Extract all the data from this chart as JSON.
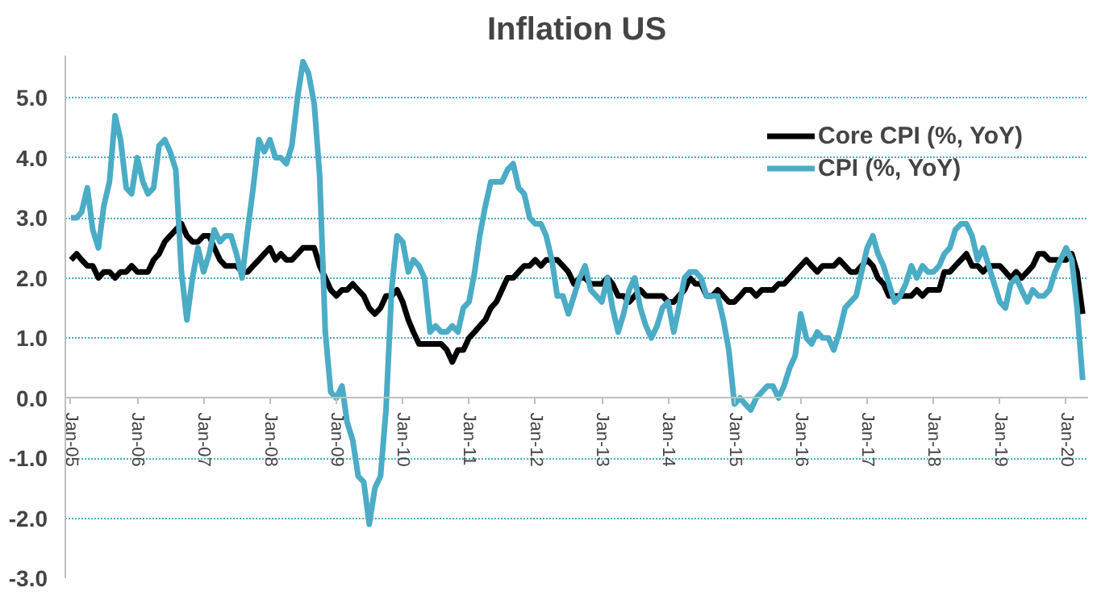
{
  "chart_data": {
    "type": "line",
    "title": "Inflation US",
    "x": [
      "2005-01",
      "2005-02",
      "2005-03",
      "2005-04",
      "2005-05",
      "2005-06",
      "2005-07",
      "2005-08",
      "2005-09",
      "2005-10",
      "2005-11",
      "2005-12",
      "2006-01",
      "2006-02",
      "2006-03",
      "2006-04",
      "2006-05",
      "2006-06",
      "2006-07",
      "2006-08",
      "2006-09",
      "2006-10",
      "2006-11",
      "2006-12",
      "2007-01",
      "2007-02",
      "2007-03",
      "2007-04",
      "2007-05",
      "2007-06",
      "2007-07",
      "2007-08",
      "2007-09",
      "2007-10",
      "2007-11",
      "2007-12",
      "2008-01",
      "2008-02",
      "2008-03",
      "2008-04",
      "2008-05",
      "2008-06",
      "2008-07",
      "2008-08",
      "2008-09",
      "2008-10",
      "2008-11",
      "2008-12",
      "2009-01",
      "2009-02",
      "2009-03",
      "2009-04",
      "2009-05",
      "2009-06",
      "2009-07",
      "2009-08",
      "2009-09",
      "2009-10",
      "2009-11",
      "2009-12",
      "2010-01",
      "2010-02",
      "2010-03",
      "2010-04",
      "2010-05",
      "2010-06",
      "2010-07",
      "2010-08",
      "2010-09",
      "2010-10",
      "2010-11",
      "2010-12",
      "2011-01",
      "2011-02",
      "2011-03",
      "2011-04",
      "2011-05",
      "2011-06",
      "2011-07",
      "2011-08",
      "2011-09",
      "2011-10",
      "2011-11",
      "2011-12",
      "2012-01",
      "2012-02",
      "2012-03",
      "2012-04",
      "2012-05",
      "2012-06",
      "2012-07",
      "2012-08",
      "2012-09",
      "2012-10",
      "2012-11",
      "2012-12",
      "2013-01",
      "2013-02",
      "2013-03",
      "2013-04",
      "2013-05",
      "2013-06",
      "2013-07",
      "2013-08",
      "2013-09",
      "2013-10",
      "2013-11",
      "2013-12",
      "2014-01",
      "2014-02",
      "2014-03",
      "2014-04",
      "2014-05",
      "2014-06",
      "2014-07",
      "2014-08",
      "2014-09",
      "2014-10",
      "2014-11",
      "2014-12",
      "2015-01",
      "2015-02",
      "2015-03",
      "2015-04",
      "2015-05",
      "2015-06",
      "2015-07",
      "2015-08",
      "2015-09",
      "2015-10",
      "2015-11",
      "2015-12",
      "2016-01",
      "2016-02",
      "2016-03",
      "2016-04",
      "2016-05",
      "2016-06",
      "2016-07",
      "2016-08",
      "2016-09",
      "2016-10",
      "2016-11",
      "2016-12",
      "2017-01",
      "2017-02",
      "2017-03",
      "2017-04",
      "2017-05",
      "2017-06",
      "2017-07",
      "2017-08",
      "2017-09",
      "2017-10",
      "2017-11",
      "2017-12",
      "2018-01",
      "2018-02",
      "2018-03",
      "2018-04",
      "2018-05",
      "2018-06",
      "2018-07",
      "2018-08",
      "2018-09",
      "2018-10",
      "2018-11",
      "2018-12",
      "2019-01",
      "2019-02",
      "2019-03",
      "2019-04",
      "2019-05",
      "2019-06",
      "2019-07",
      "2019-08",
      "2019-09",
      "2019-10",
      "2019-11",
      "2019-12",
      "2020-01",
      "2020-02",
      "2020-03",
      "2020-04"
    ],
    "series": [
      {
        "name": "Core CPI (%, YoY)",
        "color": "#000000",
        "values": [
          2.3,
          2.4,
          2.3,
          2.2,
          2.2,
          2.0,
          2.1,
          2.1,
          2.0,
          2.1,
          2.1,
          2.2,
          2.1,
          2.1,
          2.1,
          2.3,
          2.4,
          2.6,
          2.7,
          2.8,
          2.9,
          2.7,
          2.6,
          2.6,
          2.7,
          2.7,
          2.5,
          2.3,
          2.2,
          2.2,
          2.2,
          2.1,
          2.1,
          2.2,
          2.3,
          2.4,
          2.5,
          2.3,
          2.4,
          2.3,
          2.3,
          2.4,
          2.5,
          2.5,
          2.5,
          2.2,
          2.0,
          1.8,
          1.7,
          1.8,
          1.8,
          1.9,
          1.8,
          1.7,
          1.5,
          1.4,
          1.5,
          1.7,
          1.7,
          1.8,
          1.6,
          1.3,
          1.1,
          0.9,
          0.9,
          0.9,
          0.9,
          0.9,
          0.8,
          0.6,
          0.8,
          0.8,
          1.0,
          1.1,
          1.2,
          1.3,
          1.5,
          1.6,
          1.8,
          2.0,
          2.0,
          2.1,
          2.2,
          2.2,
          2.3,
          2.2,
          2.3,
          2.3,
          2.3,
          2.2,
          2.1,
          1.9,
          2.0,
          2.0,
          1.9,
          1.9,
          1.9,
          2.0,
          1.9,
          1.7,
          1.7,
          1.6,
          1.7,
          1.8,
          1.7,
          1.7,
          1.7,
          1.7,
          1.6,
          1.6,
          1.7,
          1.8,
          2.0,
          1.9,
          1.9,
          1.7,
          1.7,
          1.8,
          1.7,
          1.6,
          1.6,
          1.7,
          1.8,
          1.8,
          1.7,
          1.8,
          1.8,
          1.8,
          1.9,
          1.9,
          2.0,
          2.1,
          2.2,
          2.3,
          2.2,
          2.1,
          2.2,
          2.2,
          2.2,
          2.3,
          2.2,
          2.1,
          2.1,
          2.2,
          2.3,
          2.2,
          2.0,
          1.9,
          1.7,
          1.7,
          1.7,
          1.7,
          1.7,
          1.8,
          1.7,
          1.8,
          1.8,
          1.8,
          2.1,
          2.1,
          2.2,
          2.3,
          2.4,
          2.2,
          2.2,
          2.1,
          2.2,
          2.2,
          2.2,
          2.1,
          2.0,
          2.1,
          2.0,
          2.1,
          2.2,
          2.4,
          2.4,
          2.3,
          2.3,
          2.3,
          2.3,
          2.4,
          2.1,
          1.4
        ]
      },
      {
        "name": "CPI (%, YoY)",
        "color": "#4bacc6",
        "values": [
          3.0,
          3.0,
          3.1,
          3.5,
          2.8,
          2.5,
          3.2,
          3.6,
          4.7,
          4.3,
          3.5,
          3.4,
          4.0,
          3.6,
          3.4,
          3.5,
          4.2,
          4.3,
          4.1,
          3.8,
          2.1,
          1.3,
          2.0,
          2.5,
          2.1,
          2.4,
          2.8,
          2.6,
          2.7,
          2.7,
          2.4,
          2.0,
          2.8,
          3.5,
          4.3,
          4.1,
          4.3,
          4.0,
          4.0,
          3.9,
          4.2,
          5.0,
          5.6,
          5.4,
          4.9,
          3.7,
          1.1,
          0.1,
          0.0,
          0.2,
          -0.4,
          -0.7,
          -1.3,
          -1.4,
          -2.1,
          -1.5,
          -1.3,
          -0.2,
          1.8,
          2.7,
          2.6,
          2.1,
          2.3,
          2.2,
          2.0,
          1.1,
          1.2,
          1.1,
          1.1,
          1.2,
          1.1,
          1.5,
          1.6,
          2.1,
          2.7,
          3.2,
          3.6,
          3.6,
          3.6,
          3.8,
          3.9,
          3.5,
          3.4,
          3.0,
          2.9,
          2.9,
          2.7,
          2.3,
          1.7,
          1.7,
          1.4,
          1.7,
          2.0,
          2.2,
          1.8,
          1.7,
          1.6,
          2.0,
          1.5,
          1.1,
          1.4,
          1.8,
          2.0,
          1.5,
          1.2,
          1.0,
          1.2,
          1.5,
          1.6,
          1.1,
          1.5,
          2.0,
          2.1,
          2.1,
          2.0,
          1.7,
          1.7,
          1.7,
          1.3,
          0.8,
          -0.1,
          0.0,
          -0.1,
          -0.2,
          0.0,
          0.1,
          0.2,
          0.2,
          0.0,
          0.2,
          0.5,
          0.7,
          1.4,
          1.0,
          0.9,
          1.1,
          1.0,
          1.0,
          0.8,
          1.1,
          1.5,
          1.6,
          1.7,
          2.1,
          2.5,
          2.7,
          2.4,
          2.2,
          1.9,
          1.6,
          1.7,
          1.9,
          2.2,
          2.0,
          2.2,
          2.1,
          2.1,
          2.2,
          2.4,
          2.5,
          2.8,
          2.9,
          2.9,
          2.7,
          2.3,
          2.5,
          2.2,
          1.9,
          1.6,
          1.5,
          1.9,
          2.0,
          1.8,
          1.6,
          1.8,
          1.7,
          1.7,
          1.8,
          2.1,
          2.3,
          2.5,
          2.3,
          1.5,
          0.3
        ]
      }
    ],
    "xlim": [
      "2004-12",
      "2020-05"
    ],
    "xticks": [
      {
        "value": "2005-01",
        "label": "Jan-05"
      },
      {
        "value": "2006-01",
        "label": "Jan-06"
      },
      {
        "value": "2007-01",
        "label": "Jan-07"
      },
      {
        "value": "2008-01",
        "label": "Jan-08"
      },
      {
        "value": "2009-01",
        "label": "Jan-09"
      },
      {
        "value": "2010-01",
        "label": "Jan-10"
      },
      {
        "value": "2011-01",
        "label": "Jan-11"
      },
      {
        "value": "2012-01",
        "label": "Jan-12"
      },
      {
        "value": "2013-01",
        "label": "Jan-13"
      },
      {
        "value": "2014-01",
        "label": "Jan-14"
      },
      {
        "value": "2015-01",
        "label": "Jan-15"
      },
      {
        "value": "2016-01",
        "label": "Jan-16"
      },
      {
        "value": "2017-01",
        "label": "Jan-17"
      },
      {
        "value": "2018-01",
        "label": "Jan-18"
      },
      {
        "value": "2019-01",
        "label": "Jan-19"
      },
      {
        "value": "2020-01",
        "label": "Jan-20"
      }
    ],
    "ylim": [
      -3,
      5.7
    ],
    "yticks": [
      {
        "value": -3,
        "label": "-3.0"
      },
      {
        "value": -2,
        "label": "-2.0"
      },
      {
        "value": -1,
        "label": "-1.0"
      },
      {
        "value": 0,
        "label": "0.0"
      },
      {
        "value": 1,
        "label": "1.0"
      },
      {
        "value": 2,
        "label": "2.0"
      },
      {
        "value": 3,
        "label": "3.0"
      },
      {
        "value": 4,
        "label": "4.0"
      },
      {
        "value": 5,
        "label": "5.0"
      }
    ],
    "grid": "y",
    "legend": "top right",
    "line_style": "solid",
    "marker": "none"
  }
}
